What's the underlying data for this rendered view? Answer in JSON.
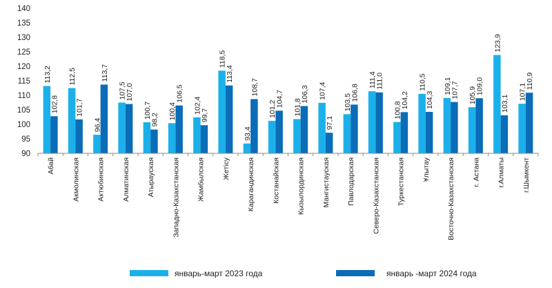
{
  "chart_data": {
    "type": "bar",
    "title": "",
    "xlabel": "",
    "ylabel": "",
    "ylim": [
      90,
      140
    ],
    "yticks": [
      90,
      95,
      100,
      105,
      110,
      115,
      120,
      125,
      130,
      135,
      140
    ],
    "legend_position": "bottom",
    "categories": [
      "Абай",
      "Акмолинская",
      "Актюбинская",
      "Алматинская",
      "Атырауская",
      "Западно-Казахстанская",
      "Жамбылская",
      "Жетісу",
      "Карагандинская",
      "Костанайская",
      "Кызылординская",
      "Мангистауская",
      "Павлодарская",
      "Северо-Казахстанская",
      "Туркестанская",
      "Ұлытау",
      "Восточно-Казахстанская",
      "г. Астана",
      "г.Алматы",
      "г.Шымкент"
    ],
    "series": [
      {
        "name": "январь-март 2023 года",
        "color": "#1cb0ea",
        "values": [
          113.2,
          112.5,
          96.4,
          107.5,
          100.7,
          100.4,
          102.4,
          118.5,
          93.4,
          101.2,
          101.8,
          107.4,
          103.5,
          111.4,
          100.8,
          110.5,
          109.1,
          105.9,
          123.9,
          107.1
        ]
      },
      {
        "name": "январь -март 2024 года",
        "color": "#0b6cb8",
        "values": [
          102.8,
          101.7,
          113.7,
          107.0,
          98.2,
          106.5,
          99.7,
          113.4,
          108.7,
          104.7,
          106.3,
          97.1,
          106.8,
          111.0,
          104.2,
          104.3,
          107.7,
          109.0,
          103.1,
          110.9
        ]
      }
    ]
  }
}
